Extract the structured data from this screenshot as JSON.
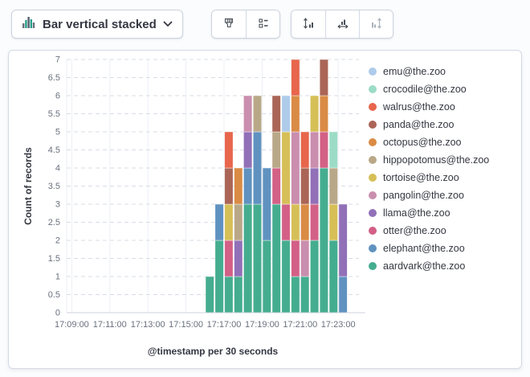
{
  "toolbar": {
    "chart_type_button": {
      "label": "Bar vertical stacked"
    },
    "style_button": {
      "icon": "paint-brush-icon"
    },
    "legend_button": {
      "icon": "legend-values-icon"
    },
    "axis_buttons": [
      {
        "icon": "left-axis-icon",
        "disabled": false
      },
      {
        "icon": "bottom-axis-icon",
        "disabled": false
      },
      {
        "icon": "right-axis-icon",
        "disabled": true
      }
    ]
  },
  "chart_data": {
    "type": "bar",
    "stacked": true,
    "xlabel": "@timestamp per 30 seconds",
    "ylabel": "Count of records",
    "ylim": [
      0,
      7
    ],
    "ytick_step": 0.5,
    "grid": true,
    "legend_position": "right",
    "x_tick_labels": [
      "17:09:00",
      "17:11:00",
      "17:13:00",
      "17:15:00",
      "17:17:00",
      "17:19:00",
      "17:21:00",
      "17:23:00"
    ],
    "x_interval_seconds": 30,
    "legend": [
      {
        "name": "emu@the.zoo",
        "color": "#aecbea"
      },
      {
        "name": "crocodile@the.zoo",
        "color": "#9cdcc6"
      },
      {
        "name": "walrus@the.zoo",
        "color": "#e7664c"
      },
      {
        "name": "panda@the.zoo",
        "color": "#aa6556"
      },
      {
        "name": "octopus@the.zoo",
        "color": "#da8b45"
      },
      {
        "name": "hippopotomus@the.zoo",
        "color": "#b9a888"
      },
      {
        "name": "tortoise@the.zoo",
        "color": "#d6bf57"
      },
      {
        "name": "pangolin@the.zoo",
        "color": "#ca8eae"
      },
      {
        "name": "llama@the.zoo",
        "color": "#9170b8"
      },
      {
        "name": "otter@the.zoo",
        "color": "#d36086"
      },
      {
        "name": "elephant@the.zoo",
        "color": "#6092c0"
      },
      {
        "name": "aardvark@the.zoo",
        "color": "#45ad8f"
      }
    ],
    "bars": [
      {
        "time": "17:16:00",
        "segments": [
          [
            "aardvark@the.zoo",
            1
          ]
        ]
      },
      {
        "time": "17:16:30",
        "segments": [
          [
            "aardvark@the.zoo",
            2
          ],
          [
            "elephant@the.zoo",
            1
          ]
        ]
      },
      {
        "time": "17:17:00",
        "segments": [
          [
            "aardvark@the.zoo",
            1
          ],
          [
            "otter@the.zoo",
            1
          ],
          [
            "tortoise@the.zoo",
            1
          ],
          [
            "panda@the.zoo",
            1
          ],
          [
            "walrus@the.zoo",
            1
          ]
        ]
      },
      {
        "time": "17:17:30",
        "segments": [
          [
            "aardvark@the.zoo",
            1
          ],
          [
            "llama@the.zoo",
            1
          ],
          [
            "hippopotomus@the.zoo",
            1
          ],
          [
            "octopus@the.zoo",
            1
          ]
        ]
      },
      {
        "time": "17:18:00",
        "segments": [
          [
            "aardvark@the.zoo",
            3
          ],
          [
            "elephant@the.zoo",
            1
          ],
          [
            "llama@the.zoo",
            1
          ],
          [
            "pangolin@the.zoo",
            1
          ]
        ]
      },
      {
        "time": "17:18:30",
        "segments": [
          [
            "aardvark@the.zoo",
            3
          ],
          [
            "elephant@the.zoo",
            2
          ],
          [
            "hippopotomus@the.zoo",
            1
          ]
        ]
      },
      {
        "time": "17:19:00",
        "segments": [
          [
            "aardvark@the.zoo",
            2
          ],
          [
            "elephant@the.zoo",
            2
          ]
        ]
      },
      {
        "time": "17:19:30",
        "segments": [
          [
            "aardvark@the.zoo",
            3
          ],
          [
            "otter@the.zoo",
            1
          ],
          [
            "hippopotomus@the.zoo",
            1
          ],
          [
            "panda@the.zoo",
            1
          ]
        ]
      },
      {
        "time": "17:20:00",
        "segments": [
          [
            "aardvark@the.zoo",
            2
          ],
          [
            "otter@the.zoo",
            1
          ],
          [
            "tortoise@the.zoo",
            2
          ],
          [
            "emu@the.zoo",
            1
          ]
        ]
      },
      {
        "time": "17:20:30",
        "segments": [
          [
            "aardvark@the.zoo",
            1
          ],
          [
            "otter@the.zoo",
            1
          ],
          [
            "tortoise@the.zoo",
            1
          ],
          [
            "pangolin@the.zoo",
            2
          ],
          [
            "octopus@the.zoo",
            1
          ],
          [
            "walrus@the.zoo",
            1
          ]
        ]
      },
      {
        "time": "17:21:00",
        "segments": [
          [
            "aardvark@the.zoo",
            1
          ],
          [
            "pangolin@the.zoo",
            1
          ],
          [
            "octopus@the.zoo",
            1
          ],
          [
            "panda@the.zoo",
            1
          ],
          [
            "walrus@the.zoo",
            1
          ]
        ]
      },
      {
        "time": "17:21:30",
        "segments": [
          [
            "aardvark@the.zoo",
            2
          ],
          [
            "otter@the.zoo",
            1
          ],
          [
            "llama@the.zoo",
            1
          ],
          [
            "pangolin@the.zoo",
            1
          ],
          [
            "tortoise@the.zoo",
            1
          ]
        ]
      },
      {
        "time": "17:22:00",
        "segments": [
          [
            "aardvark@the.zoo",
            4
          ],
          [
            "otter@the.zoo",
            1
          ],
          [
            "octopus@the.zoo",
            1
          ],
          [
            "panda@the.zoo",
            1
          ]
        ]
      },
      {
        "time": "17:22:30",
        "segments": [
          [
            "aardvark@the.zoo",
            2
          ],
          [
            "tortoise@the.zoo",
            1
          ],
          [
            "hippopotomus@the.zoo",
            1
          ],
          [
            "crocodile@the.zoo",
            1
          ]
        ]
      },
      {
        "time": "17:23:00",
        "segments": [
          [
            "elephant@the.zoo",
            1
          ],
          [
            "llama@the.zoo",
            2
          ]
        ]
      }
    ]
  }
}
